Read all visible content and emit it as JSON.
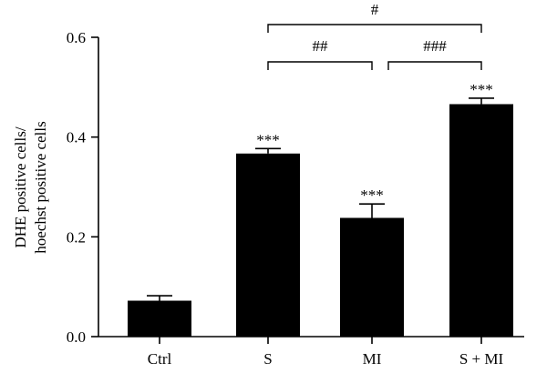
{
  "chart_data": {
    "type": "bar",
    "categories": [
      "Ctrl",
      "S",
      "MI",
      "S + MI"
    ],
    "values": [
      0.072,
      0.367,
      0.238,
      0.466
    ],
    "errors": [
      0.01,
      0.01,
      0.028,
      0.012
    ],
    "bar_annotations": [
      "",
      "***",
      "***",
      "***"
    ],
    "ylabel": [
      "DHE positive cells/",
      "hoechst positive cells"
    ],
    "ylim": [
      0,
      0.6
    ],
    "yticks": [
      0.0,
      0.2,
      0.4,
      0.6
    ],
    "ytick_labels": [
      "0.0",
      "0.2",
      "0.4",
      "0.6"
    ],
    "comparisons": [
      {
        "from": "S",
        "to": "S + MI",
        "label": "#"
      },
      {
        "from": "S",
        "to": "MI",
        "label": "##"
      },
      {
        "from": "MI",
        "to": "S + MI",
        "label": "###"
      }
    ],
    "bar_color": "#000000",
    "grid": false
  }
}
